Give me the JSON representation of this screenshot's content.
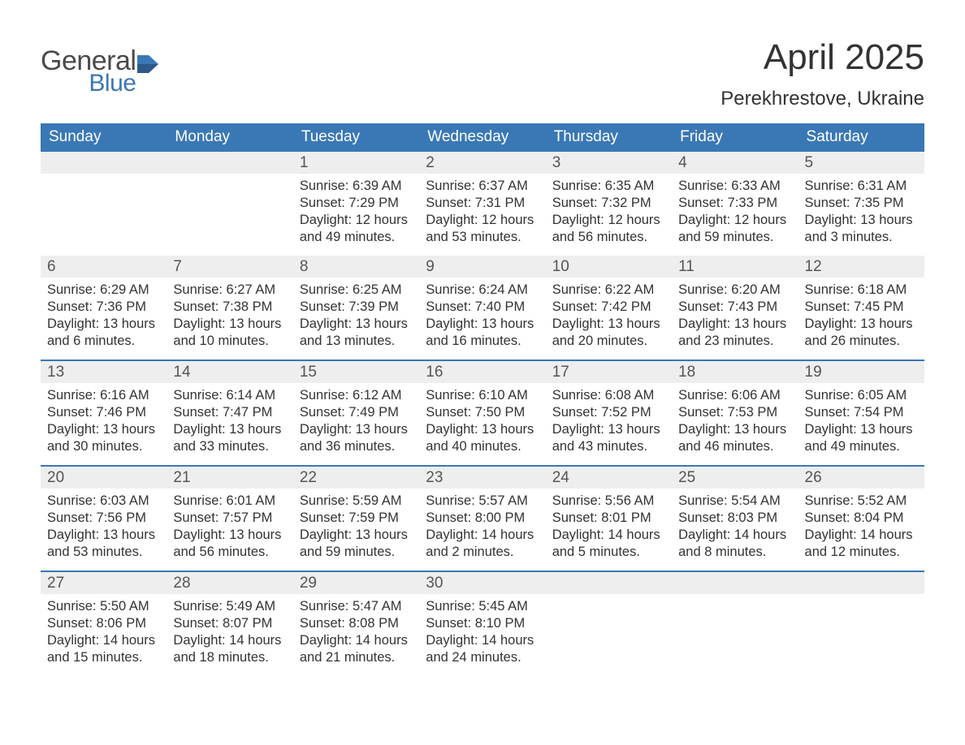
{
  "brand": {
    "line1": "General",
    "line2": "Blue",
    "text_color": "#4a4a4a",
    "accent_color": "#3a78b5"
  },
  "title": "April 2025",
  "location": "Perekhrestove, Ukraine",
  "colors": {
    "header_bg": "#3a78b5",
    "header_text": "#ffffff",
    "strip_bg": "#eeeeee",
    "body_text": "#333333",
    "week_divider": "#3a78b5",
    "page_bg": "#ffffff"
  },
  "fonts": {
    "title_size_pt": 33,
    "location_size_pt": 18,
    "header_size_pt": 14,
    "cell_size_pt": 12
  },
  "day_headers": [
    "Sunday",
    "Monday",
    "Tuesday",
    "Wednesday",
    "Thursday",
    "Friday",
    "Saturday"
  ],
  "weeks": [
    [
      {
        "num": "",
        "sunrise": "",
        "sunset": "",
        "daylight": ""
      },
      {
        "num": "",
        "sunrise": "",
        "sunset": "",
        "daylight": ""
      },
      {
        "num": "1",
        "sunrise": "Sunrise: 6:39 AM",
        "sunset": "Sunset: 7:29 PM",
        "daylight": "Daylight: 12 hours and 49 minutes."
      },
      {
        "num": "2",
        "sunrise": "Sunrise: 6:37 AM",
        "sunset": "Sunset: 7:31 PM",
        "daylight": "Daylight: 12 hours and 53 minutes."
      },
      {
        "num": "3",
        "sunrise": "Sunrise: 6:35 AM",
        "sunset": "Sunset: 7:32 PM",
        "daylight": "Daylight: 12 hours and 56 minutes."
      },
      {
        "num": "4",
        "sunrise": "Sunrise: 6:33 AM",
        "sunset": "Sunset: 7:33 PM",
        "daylight": "Daylight: 12 hours and 59 minutes."
      },
      {
        "num": "5",
        "sunrise": "Sunrise: 6:31 AM",
        "sunset": "Sunset: 7:35 PM",
        "daylight": "Daylight: 13 hours and 3 minutes."
      }
    ],
    [
      {
        "num": "6",
        "sunrise": "Sunrise: 6:29 AM",
        "sunset": "Sunset: 7:36 PM",
        "daylight": "Daylight: 13 hours and 6 minutes."
      },
      {
        "num": "7",
        "sunrise": "Sunrise: 6:27 AM",
        "sunset": "Sunset: 7:38 PM",
        "daylight": "Daylight: 13 hours and 10 minutes."
      },
      {
        "num": "8",
        "sunrise": "Sunrise: 6:25 AM",
        "sunset": "Sunset: 7:39 PM",
        "daylight": "Daylight: 13 hours and 13 minutes."
      },
      {
        "num": "9",
        "sunrise": "Sunrise: 6:24 AM",
        "sunset": "Sunset: 7:40 PM",
        "daylight": "Daylight: 13 hours and 16 minutes."
      },
      {
        "num": "10",
        "sunrise": "Sunrise: 6:22 AM",
        "sunset": "Sunset: 7:42 PM",
        "daylight": "Daylight: 13 hours and 20 minutes."
      },
      {
        "num": "11",
        "sunrise": "Sunrise: 6:20 AM",
        "sunset": "Sunset: 7:43 PM",
        "daylight": "Daylight: 13 hours and 23 minutes."
      },
      {
        "num": "12",
        "sunrise": "Sunrise: 6:18 AM",
        "sunset": "Sunset: 7:45 PM",
        "daylight": "Daylight: 13 hours and 26 minutes."
      }
    ],
    [
      {
        "num": "13",
        "sunrise": "Sunrise: 6:16 AM",
        "sunset": "Sunset: 7:46 PM",
        "daylight": "Daylight: 13 hours and 30 minutes."
      },
      {
        "num": "14",
        "sunrise": "Sunrise: 6:14 AM",
        "sunset": "Sunset: 7:47 PM",
        "daylight": "Daylight: 13 hours and 33 minutes."
      },
      {
        "num": "15",
        "sunrise": "Sunrise: 6:12 AM",
        "sunset": "Sunset: 7:49 PM",
        "daylight": "Daylight: 13 hours and 36 minutes."
      },
      {
        "num": "16",
        "sunrise": "Sunrise: 6:10 AM",
        "sunset": "Sunset: 7:50 PM",
        "daylight": "Daylight: 13 hours and 40 minutes."
      },
      {
        "num": "17",
        "sunrise": "Sunrise: 6:08 AM",
        "sunset": "Sunset: 7:52 PM",
        "daylight": "Daylight: 13 hours and 43 minutes."
      },
      {
        "num": "18",
        "sunrise": "Sunrise: 6:06 AM",
        "sunset": "Sunset: 7:53 PM",
        "daylight": "Daylight: 13 hours and 46 minutes."
      },
      {
        "num": "19",
        "sunrise": "Sunrise: 6:05 AM",
        "sunset": "Sunset: 7:54 PM",
        "daylight": "Daylight: 13 hours and 49 minutes."
      }
    ],
    [
      {
        "num": "20",
        "sunrise": "Sunrise: 6:03 AM",
        "sunset": "Sunset: 7:56 PM",
        "daylight": "Daylight: 13 hours and 53 minutes."
      },
      {
        "num": "21",
        "sunrise": "Sunrise: 6:01 AM",
        "sunset": "Sunset: 7:57 PM",
        "daylight": "Daylight: 13 hours and 56 minutes."
      },
      {
        "num": "22",
        "sunrise": "Sunrise: 5:59 AM",
        "sunset": "Sunset: 7:59 PM",
        "daylight": "Daylight: 13 hours and 59 minutes."
      },
      {
        "num": "23",
        "sunrise": "Sunrise: 5:57 AM",
        "sunset": "Sunset: 8:00 PM",
        "daylight": "Daylight: 14 hours and 2 minutes."
      },
      {
        "num": "24",
        "sunrise": "Sunrise: 5:56 AM",
        "sunset": "Sunset: 8:01 PM",
        "daylight": "Daylight: 14 hours and 5 minutes."
      },
      {
        "num": "25",
        "sunrise": "Sunrise: 5:54 AM",
        "sunset": "Sunset: 8:03 PM",
        "daylight": "Daylight: 14 hours and 8 minutes."
      },
      {
        "num": "26",
        "sunrise": "Sunrise: 5:52 AM",
        "sunset": "Sunset: 8:04 PM",
        "daylight": "Daylight: 14 hours and 12 minutes."
      }
    ],
    [
      {
        "num": "27",
        "sunrise": "Sunrise: 5:50 AM",
        "sunset": "Sunset: 8:06 PM",
        "daylight": "Daylight: 14 hours and 15 minutes."
      },
      {
        "num": "28",
        "sunrise": "Sunrise: 5:49 AM",
        "sunset": "Sunset: 8:07 PM",
        "daylight": "Daylight: 14 hours and 18 minutes."
      },
      {
        "num": "29",
        "sunrise": "Sunrise: 5:47 AM",
        "sunset": "Sunset: 8:08 PM",
        "daylight": "Daylight: 14 hours and 21 minutes."
      },
      {
        "num": "30",
        "sunrise": "Sunrise: 5:45 AM",
        "sunset": "Sunset: 8:10 PM",
        "daylight": "Daylight: 14 hours and 24 minutes."
      },
      {
        "num": "",
        "sunrise": "",
        "sunset": "",
        "daylight": ""
      },
      {
        "num": "",
        "sunrise": "",
        "sunset": "",
        "daylight": ""
      },
      {
        "num": "",
        "sunrise": "",
        "sunset": "",
        "daylight": ""
      }
    ]
  ]
}
